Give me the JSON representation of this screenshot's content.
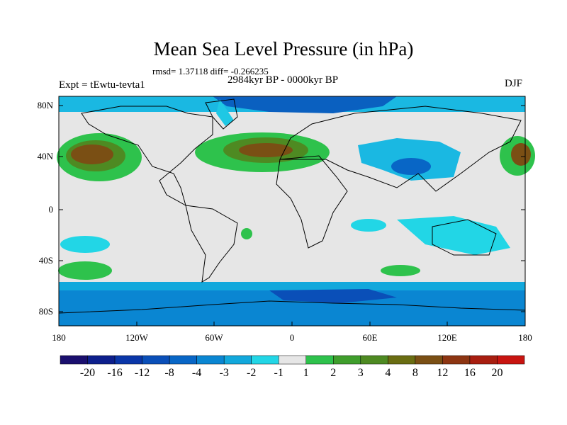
{
  "title": "Mean Sea Level Pressure (in hPa)",
  "stats": "rmsd= 1.37118 diff= -0.266235",
  "experiment": "Expt = tEwtu-tevta1",
  "period": "2984kyr BP - 0000kyr BP",
  "season": "DJF",
  "lat_labels": [
    "80N",
    "40N",
    "0",
    "40S",
    "80S"
  ],
  "lon_labels": [
    "180",
    "120W",
    "60W",
    "0",
    "60E",
    "120E",
    "180"
  ],
  "colorbar": {
    "labels": [
      "-20",
      "-16",
      "-12",
      "-8",
      "-4",
      "-3",
      "-2",
      "-1",
      "1",
      "2",
      "3",
      "4",
      "8",
      "12",
      "16",
      "20"
    ],
    "colors": [
      "#1a0f6e",
      "#0d1f8c",
      "#0a36a8",
      "#0a4fb8",
      "#0866c6",
      "#0a86d2",
      "#12a8dc",
      "#22d6e6",
      "#e6e6e6",
      "#2ec24c",
      "#3f9e2c",
      "#4e8a22",
      "#6a6d12",
      "#7a4f14",
      "#8d3512",
      "#a81e10",
      "#c81410"
    ]
  },
  "colors": {
    "land_outline": "#000000",
    "neutral": "#e6e6e6"
  }
}
